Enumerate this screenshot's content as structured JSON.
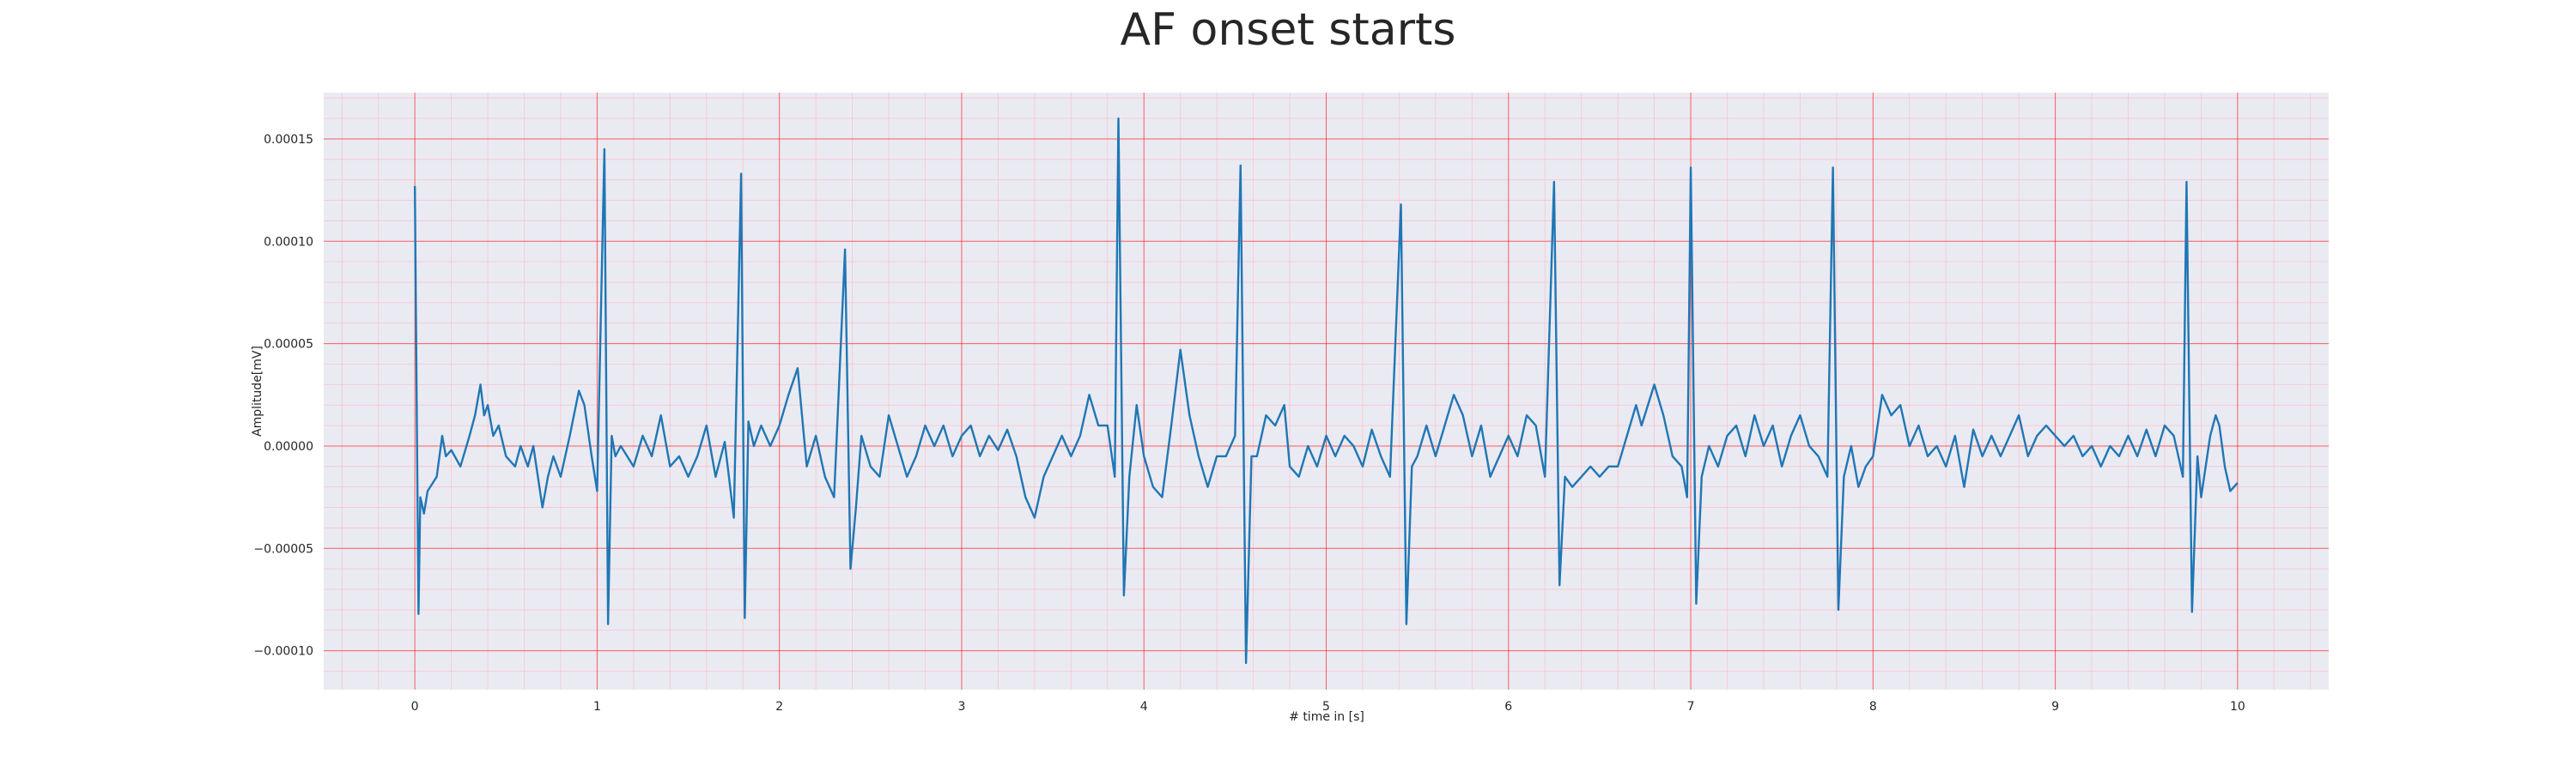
{
  "chart_data": {
    "type": "line",
    "title": "AF onset starts",
    "xlabel": "# time in [s]",
    "ylabel": "Amplitude[mV]",
    "color": "#1f77b4",
    "background": "#eaeaf2",
    "grid": true,
    "grid_color": "#ff0000",
    "minor_grid": true,
    "minor_grid_color": "#ffb6c1",
    "xlim": [
      -0.5,
      10.5
    ],
    "ylim": [
      -0.000119,
      0.0001726
    ],
    "xticks": [
      0,
      1,
      2,
      3,
      4,
      5,
      6,
      7,
      8,
      9,
      10
    ],
    "yticks": [
      {
        "value": -0.0001,
        "label": "−0.00010"
      },
      {
        "value": -5e-05,
        "label": "−0.00005"
      },
      {
        "value": 0,
        "label": "0.00000"
      },
      {
        "value": 5e-05,
        "label": "0.00005"
      },
      {
        "value": 0.0001,
        "label": "0.00010"
      },
      {
        "value": 0.00015,
        "label": "0.00015"
      }
    ],
    "x": [
      0,
      0.02,
      0.03,
      0.05,
      0.07,
      0.12,
      0.15,
      0.17,
      0.2,
      0.25,
      0.3,
      0.33,
      0.36,
      0.38,
      0.4,
      0.43,
      0.46,
      0.5,
      0.55,
      0.58,
      0.62,
      0.65,
      0.7,
      0.73,
      0.76,
      0.8,
      0.85,
      0.9,
      0.93,
      0.97,
      1.0,
      1.04,
      1.06,
      1.08,
      1.1,
      1.13,
      1.2,
      1.25,
      1.3,
      1.35,
      1.4,
      1.45,
      1.5,
      1.55,
      1.6,
      1.65,
      1.7,
      1.75,
      1.79,
      1.81,
      1.83,
      1.86,
      1.9,
      1.95,
      2.0,
      2.05,
      2.1,
      2.15,
      2.2,
      2.25,
      2.3,
      2.36,
      2.39,
      2.42,
      2.45,
      2.5,
      2.55,
      2.6,
      2.65,
      2.7,
      2.75,
      2.8,
      2.85,
      2.9,
      2.95,
      3.0,
      3.05,
      3.1,
      3.15,
      3.2,
      3.25,
      3.3,
      3.35,
      3.4,
      3.45,
      3.5,
      3.55,
      3.6,
      3.65,
      3.7,
      3.75,
      3.8,
      3.84,
      3.86,
      3.89,
      3.92,
      3.96,
      4.0,
      4.05,
      4.1,
      4.15,
      4.2,
      4.25,
      4.3,
      4.35,
      4.4,
      4.45,
      4.5,
      4.53,
      4.56,
      4.59,
      4.62,
      4.67,
      4.72,
      4.77,
      4.8,
      4.85,
      4.9,
      4.95,
      5.0,
      5.05,
      5.1,
      5.15,
      5.2,
      5.25,
      5.3,
      5.35,
      5.41,
      5.44,
      5.47,
      5.5,
      5.55,
      5.6,
      5.65,
      5.7,
      5.75,
      5.8,
      5.85,
      5.9,
      5.95,
      6.0,
      6.05,
      6.1,
      6.15,
      6.2,
      6.25,
      6.28,
      6.31,
      6.35,
      6.4,
      6.45,
      6.5,
      6.55,
      6.6,
      6.65,
      6.7,
      6.73,
      6.8,
      6.85,
      6.9,
      6.95,
      6.98,
      7.0,
      7.03,
      7.06,
      7.1,
      7.15,
      7.2,
      7.25,
      7.3,
      7.35,
      7.4,
      7.45,
      7.5,
      7.55,
      7.6,
      7.65,
      7.7,
      7.75,
      7.78,
      7.81,
      7.84,
      7.88,
      7.92,
      7.96,
      8.0,
      8.05,
      8.1,
      8.15,
      8.2,
      8.25,
      8.3,
      8.35,
      8.4,
      8.45,
      8.5,
      8.55,
      8.6,
      8.65,
      8.7,
      8.75,
      8.8,
      8.85,
      8.9,
      8.95,
      9.0,
      9.05,
      9.1,
      9.15,
      9.2,
      9.25,
      9.3,
      9.35,
      9.4,
      9.45,
      9.5,
      9.55,
      9.6,
      9.65,
      9.7,
      9.72,
      9.75,
      9.78,
      9.8,
      9.85,
      9.88,
      9.9,
      9.93,
      9.96,
      10.0
    ],
    "values": [
      0.000127,
      -8.2e-05,
      -2.5e-05,
      -3.3e-05,
      -2.2e-05,
      -1.5e-05,
      5e-06,
      -5e-06,
      -2e-06,
      -1e-05,
      5e-06,
      1.5e-05,
      3e-05,
      1.5e-05,
      2e-05,
      5e-06,
      1e-05,
      -5e-06,
      -1e-05,
      0,
      -1e-05,
      0,
      -3e-05,
      -1.5e-05,
      -5e-06,
      -1.5e-05,
      5e-06,
      2.7e-05,
      2e-05,
      -5e-06,
      -2.2e-05,
      0.000145,
      -8.7e-05,
      5e-06,
      -5e-06,
      0,
      -1e-05,
      5e-06,
      -5e-06,
      1.5e-05,
      -1e-05,
      -5e-06,
      -1.5e-05,
      -5e-06,
      1e-05,
      -1.5e-05,
      2e-06,
      -3.5e-05,
      0.000133,
      -8.4e-05,
      1.2e-05,
      0,
      1e-05,
      0,
      1e-05,
      2.5e-05,
      3.8e-05,
      -1e-05,
      5e-06,
      -1.5e-05,
      -2.5e-05,
      9.6e-05,
      -6e-05,
      -3e-05,
      5e-06,
      -1e-05,
      -1.5e-05,
      1.5e-05,
      0,
      -1.5e-05,
      -5e-06,
      1e-05,
      0,
      1e-05,
      -5e-06,
      5e-06,
      1e-05,
      -5e-06,
      5e-06,
      -2e-06,
      8e-06,
      -5e-06,
      -2.5e-05,
      -3.5e-05,
      -1.5e-05,
      -5e-06,
      5e-06,
      -5e-06,
      5e-06,
      2.5e-05,
      1e-05,
      1e-05,
      -1.5e-05,
      0.00016,
      -7.3e-05,
      -1.5e-05,
      2e-05,
      -5e-06,
      -2e-05,
      -2.5e-05,
      1e-05,
      4.7e-05,
      1.5e-05,
      -5e-06,
      -2e-05,
      -5e-06,
      -5e-06,
      5e-06,
      0.000137,
      -0.000106,
      -5e-06,
      -5e-06,
      1.5e-05,
      1e-05,
      2e-05,
      -1e-05,
      -1.5e-05,
      0,
      -1e-05,
      5e-06,
      -5e-06,
      5e-06,
      0,
      -1e-05,
      8e-06,
      -5e-06,
      -1.5e-05,
      0.000118,
      -8.7e-05,
      -1e-05,
      -5e-06,
      1e-05,
      -5e-06,
      1e-05,
      2.5e-05,
      1.5e-05,
      -5e-06,
      1e-05,
      -1.5e-05,
      -5e-06,
      5e-06,
      -5e-06,
      1.5e-05,
      1e-05,
      -1.5e-05,
      0.000129,
      -6.8e-05,
      -1.5e-05,
      -2e-05,
      -1.5e-05,
      -1e-05,
      -1.5e-05,
      -1e-05,
      -1e-05,
      5e-06,
      2e-05,
      1e-05,
      3e-05,
      1.5e-05,
      -5e-06,
      -1e-05,
      -2.5e-05,
      0.000136,
      -7.7e-05,
      -1.5e-05,
      0,
      -1e-05,
      5e-06,
      1e-05,
      -5e-06,
      1.5e-05,
      0,
      1e-05,
      -1e-05,
      5e-06,
      1.5e-05,
      0,
      -5e-06,
      -1.5e-05,
      0.000136,
      -8e-05,
      -1.5e-05,
      0,
      -2e-05,
      -1e-05,
      -5e-06,
      2.5e-05,
      1.5e-05,
      2e-05,
      0,
      1e-05,
      -5e-06,
      0,
      -1e-05,
      5e-06,
      -2e-05,
      8e-06,
      -5e-06,
      5e-06,
      -5e-06,
      5e-06,
      1.5e-05,
      -5e-06,
      5e-06,
      1e-05,
      5e-06,
      0,
      5e-06,
      -5e-06,
      0,
      -1e-05,
      0,
      -5e-06,
      5e-06,
      -5e-06,
      8e-06,
      -5e-06,
      1e-05,
      5e-06,
      -1.5e-05,
      0.000129,
      -8.1e-05,
      -5e-06,
      -2.5e-05,
      5e-06,
      1.5e-05,
      1e-05,
      -1e-05,
      -2.2e-05,
      -1.8e-05
    ]
  }
}
